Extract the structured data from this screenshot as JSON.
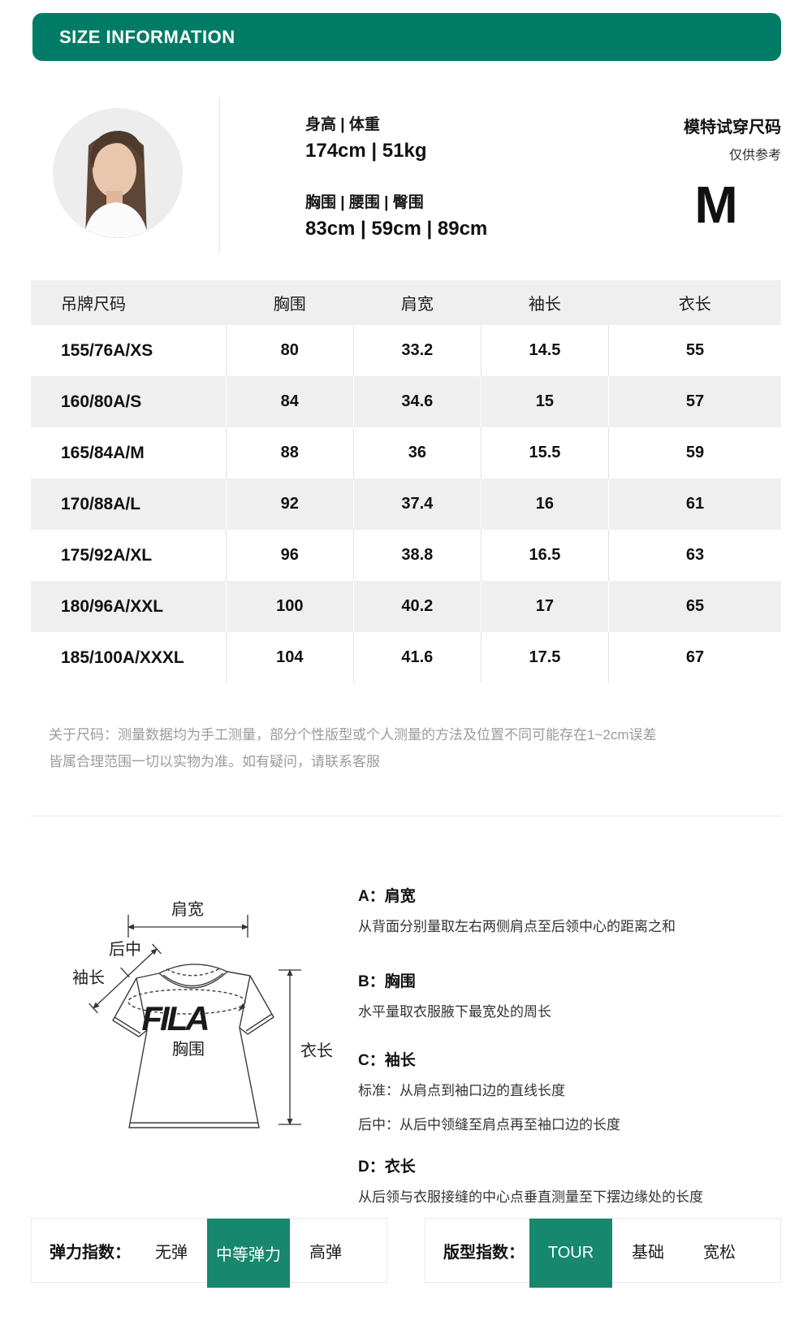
{
  "header": {
    "title": "SIZE INFORMATION"
  },
  "model": {
    "height_weight_label": "身高 | 体重",
    "height_weight_value": "174cm | 51kg",
    "bwh_label": "胸围 | 腰围 | 臀围",
    "bwh_value": "83cm | 59cm | 89cm",
    "fit_title": "模特试穿尺码",
    "fit_note": "仅供参考",
    "fit_size": "M"
  },
  "table": {
    "headers": [
      "吊牌尺码",
      "胸围",
      "肩宽",
      "袖长",
      "衣长"
    ],
    "rows": [
      [
        "155/76A/XS",
        "80",
        "33.2",
        "14.5",
        "55"
      ],
      [
        "160/80A/S",
        "84",
        "34.6",
        "15",
        "57"
      ],
      [
        "165/84A/M",
        "88",
        "36",
        "15.5",
        "59"
      ],
      [
        "170/88A/L",
        "92",
        "37.4",
        "16",
        "61"
      ],
      [
        "175/92A/XL",
        "96",
        "38.8",
        "16.5",
        "63"
      ],
      [
        "180/96A/XXL",
        "100",
        "40.2",
        "17",
        "65"
      ],
      [
        "185/100A/XXXL",
        "104",
        "41.6",
        "17.5",
        "67"
      ]
    ]
  },
  "note": {
    "line1": "关于尺码：测量数据均为手工测量，部分个性版型或个人测量的方法及位置不同可能存在1~2cm误差",
    "line2": "皆属合理范围一切以实物为准。如有疑问，请联系客服"
  },
  "diagram": {
    "logo": "FILA",
    "labels": {
      "shoulder": "肩宽",
      "back_center": "后中",
      "sleeve": "袖长",
      "length": "衣长",
      "chest": "胸围"
    },
    "explanations": {
      "a_title": "A：肩宽",
      "a_line1": "从背面分别量取左右两侧肩点至后领中心的距离之和",
      "b_title": "B：胸围",
      "b_line1": "水平量取衣服腋下最宽处的周长",
      "c_title": "C：袖长",
      "c_line1": "标准：从肩点到袖口边的直线长度",
      "c_line2": "后中：从后中领缝至肩点再至袖口边的长度",
      "d_title": "D：衣长",
      "d_line1": "从后领与衣服接缝的中心点垂直测量至下摆边缘处的长度"
    }
  },
  "indices": {
    "elasticity": {
      "label": "弹力指数：",
      "options": [
        "无弹",
        "中等弹力",
        "高弹"
      ],
      "selected": "中等弹力"
    },
    "fit": {
      "label": "版型指数：",
      "options": [
        "TOUR",
        "基础",
        "宽松"
      ],
      "selected": "TOUR"
    }
  },
  "colors": {
    "accent_green": "#007C66",
    "selected_cell_green": "#17876E",
    "row_alt_gray": "#EFEFEF"
  }
}
